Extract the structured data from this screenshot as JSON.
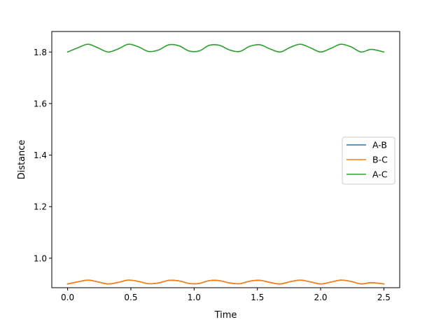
{
  "chart_data": {
    "type": "line",
    "title": "",
    "xlabel": "Time",
    "ylabel": "Distance",
    "xlim": [
      -0.125,
      2.625
    ],
    "ylim": [
      0.8855,
      1.8795
    ],
    "xticks": [
      0.0,
      0.5,
      1.0,
      1.5,
      2.0,
      2.5
    ],
    "xtick_labels": [
      "0.0",
      "0.5",
      "1.0",
      "1.5",
      "2.0",
      "2.5"
    ],
    "yticks": [
      1.0,
      1.2,
      1.4,
      1.6,
      1.8
    ],
    "ytick_labels": [
      "1.0",
      "1.2",
      "1.4",
      "1.6",
      "1.8"
    ],
    "grid": false,
    "legend_position": "center-right",
    "series": [
      {
        "name": "A-B",
        "color": "#1f77b4",
        "x": [
          0.0,
          0.08,
          0.16,
          0.24,
          0.32,
          0.4,
          0.48,
          0.56,
          0.64,
          0.72,
          0.8,
          0.88,
          0.96,
          1.04,
          1.12,
          1.2,
          1.28,
          1.36,
          1.44,
          1.52,
          1.6,
          1.68,
          1.76,
          1.84,
          1.92,
          2.0,
          2.08,
          2.16,
          2.24,
          2.32,
          2.4,
          2.5
        ],
        "y": [
          0.9,
          0.908,
          0.915,
          0.908,
          0.9,
          0.906,
          0.915,
          0.91,
          0.901,
          0.904,
          0.914,
          0.912,
          0.902,
          0.902,
          0.913,
          0.913,
          0.904,
          0.901,
          0.911,
          0.914,
          0.906,
          0.9,
          0.909,
          0.915,
          0.908,
          0.9,
          0.907,
          0.915,
          0.91,
          0.9,
          0.905,
          0.9
        ]
      },
      {
        "name": "B-C",
        "color": "#ff7f0e",
        "x": [
          0.0,
          0.08,
          0.16,
          0.24,
          0.32,
          0.4,
          0.48,
          0.56,
          0.64,
          0.72,
          0.8,
          0.88,
          0.96,
          1.04,
          1.12,
          1.2,
          1.28,
          1.36,
          1.44,
          1.52,
          1.6,
          1.68,
          1.76,
          1.84,
          1.92,
          2.0,
          2.08,
          2.16,
          2.24,
          2.32,
          2.4,
          2.5
        ],
        "y": [
          0.9,
          0.908,
          0.915,
          0.908,
          0.9,
          0.906,
          0.915,
          0.91,
          0.901,
          0.904,
          0.914,
          0.912,
          0.902,
          0.902,
          0.913,
          0.913,
          0.904,
          0.901,
          0.911,
          0.914,
          0.906,
          0.9,
          0.909,
          0.915,
          0.908,
          0.9,
          0.907,
          0.915,
          0.91,
          0.9,
          0.905,
          0.9
        ]
      },
      {
        "name": "A-C",
        "color": "#2ca02c",
        "x": [
          0.0,
          0.08,
          0.16,
          0.24,
          0.32,
          0.4,
          0.48,
          0.56,
          0.64,
          0.72,
          0.8,
          0.88,
          0.96,
          1.04,
          1.12,
          1.2,
          1.28,
          1.36,
          1.44,
          1.52,
          1.6,
          1.68,
          1.76,
          1.84,
          1.92,
          2.0,
          2.08,
          2.16,
          2.24,
          2.32,
          2.4,
          2.5
        ],
        "y": [
          1.8,
          1.816,
          1.83,
          1.816,
          1.8,
          1.812,
          1.83,
          1.82,
          1.802,
          1.808,
          1.828,
          1.824,
          1.804,
          1.804,
          1.826,
          1.826,
          1.808,
          1.802,
          1.822,
          1.828,
          1.812,
          1.8,
          1.818,
          1.83,
          1.816,
          1.8,
          1.814,
          1.83,
          1.82,
          1.8,
          1.81,
          1.8
        ]
      }
    ]
  }
}
